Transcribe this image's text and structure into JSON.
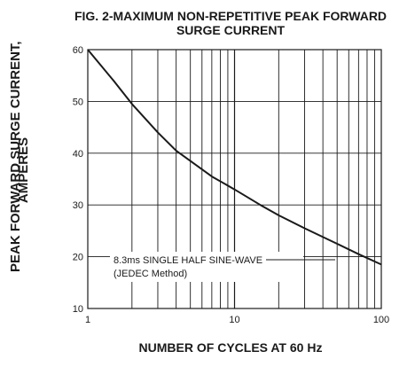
{
  "chart_data": {
    "type": "line",
    "title_line1": "FIG. 2-MAXIMUM NON-REPETITIVE PEAK FORWARD",
    "title_line2": "SURGE CURRENT",
    "ylabel_line1": "PEAK FORWARD SURGE CURRENT,",
    "ylabel_line2": "AMPERES",
    "xlabel": "NUMBER OF CYCLES AT 60 Hz",
    "xscale": "log",
    "xlim": [
      1,
      100
    ],
    "ylim": [
      10,
      60
    ],
    "x_ticks": [
      1,
      10,
      100
    ],
    "x_tick_labels": [
      "1",
      "10",
      "100"
    ],
    "y_ticks": [
      10,
      20,
      30,
      40,
      50,
      60
    ],
    "y_tick_labels": [
      "10",
      "20",
      "30",
      "40",
      "50",
      "60"
    ],
    "grid": true,
    "annotation_line1": "8.3ms SINGLE HALF SINE-WAVE",
    "annotation_line2": "(JEDEC Method)",
    "series": [
      {
        "color": "#1a1a1a",
        "x": [
          1,
          1.5,
          2,
          3,
          4,
          5,
          7,
          10,
          15,
          20,
          30,
          50,
          70,
          100
        ],
        "y": [
          60,
          54,
          49.5,
          44,
          40.5,
          38.5,
          35.5,
          33,
          30,
          28,
          25.5,
          22.5,
          20.5,
          18.5
        ]
      }
    ]
  }
}
